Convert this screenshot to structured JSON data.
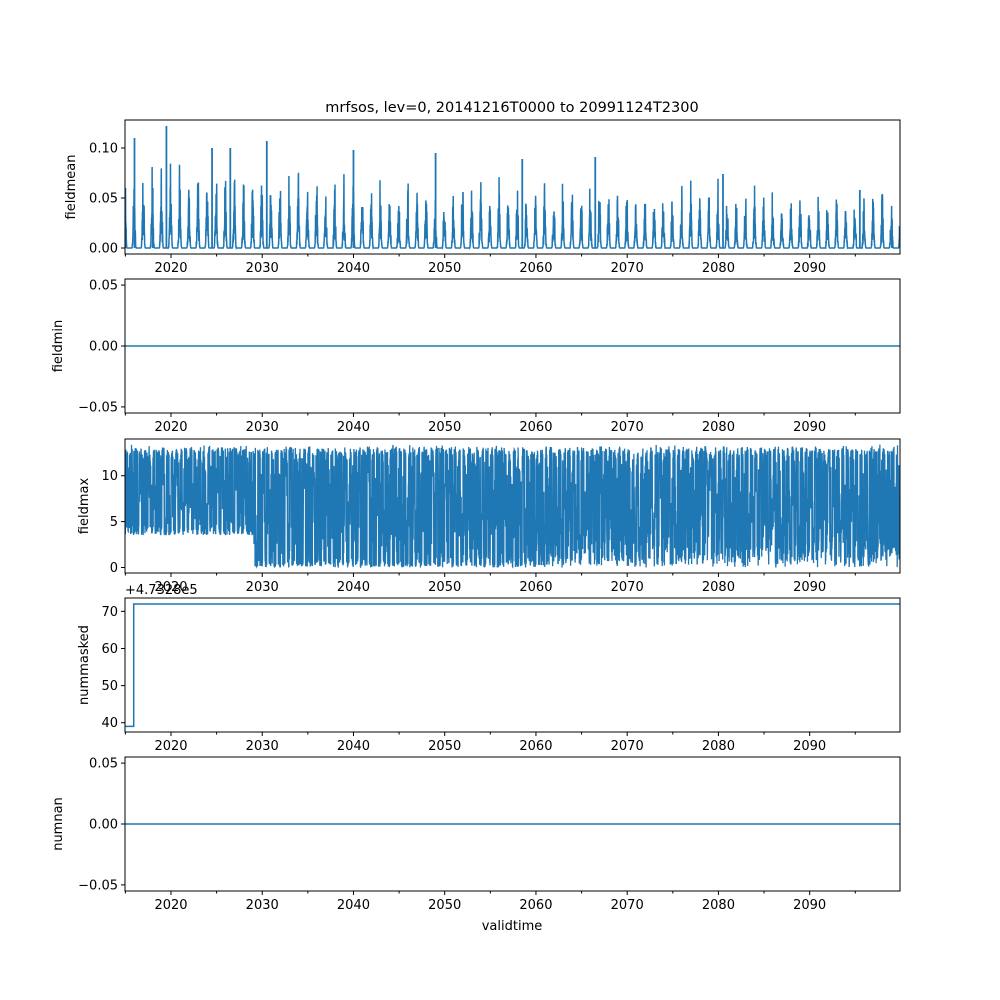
{
  "title": "mrfsos, lev=0, 20141216T0000 to 20991124T2300",
  "xlabel": "validtime",
  "line_color": "#1f77b4",
  "x_ticks": [
    "2020",
    "2030",
    "2040",
    "2050",
    "2060",
    "2070",
    "2080",
    "2090"
  ],
  "x_range": [
    "2014-12-16",
    "2099-11-24"
  ],
  "chart_data": [
    {
      "type": "line",
      "ylabel": "fieldmean",
      "y_ticks": [
        "0.00",
        "0.05",
        "0.10"
      ],
      "ylim": [
        -0.006,
        0.128
      ],
      "description_values": {
        "baseline": 0.0,
        "seasonal_peaks_approx": [
          {
            "x": 2015,
            "y": 0.06
          },
          {
            "x": 2016,
            "y": 0.11
          },
          {
            "x": 2018,
            "y": 0.06
          },
          {
            "x": 2019.5,
            "y": 0.122
          },
          {
            "x": 2024.5,
            "y": 0.1
          },
          {
            "x": 2026.5,
            "y": 0.1
          },
          {
            "x": 2030.5,
            "y": 0.107
          },
          {
            "x": 2040,
            "y": 0.098
          },
          {
            "x": 2049,
            "y": 0.095
          },
          {
            "x": 2058.5,
            "y": 0.089
          },
          {
            "x": 2066.5,
            "y": 0.091
          },
          {
            "x": 2080.5,
            "y": 0.074
          },
          {
            "x": 2095.5,
            "y": 0.058
          },
          {
            "x": 2099,
            "y": 0.027
          }
        ]
      }
    },
    {
      "type": "line",
      "ylabel": "fieldmin",
      "y_ticks": [
        "−0.05",
        "0.00",
        "0.05"
      ],
      "ylim": [
        -0.055,
        0.055
      ],
      "values": [
        {
          "x": "2014-12-16",
          "y": 0.0
        },
        {
          "x": "2099-11-24",
          "y": 0.0
        }
      ]
    },
    {
      "type": "line",
      "ylabel": "fieldmax",
      "y_ticks": [
        "0",
        "5",
        "10"
      ],
      "ylim": [
        -0.6,
        14.0
      ],
      "description_values": {
        "max_approx": 13.4,
        "min_before_2029": 3.5,
        "min_after_2029": 0.0
      }
    },
    {
      "type": "line",
      "ylabel": "nummasked",
      "offset_label": "+4.7328e5",
      "y_ticks": [
        "40",
        "50",
        "60",
        "70"
      ],
      "ylim": [
        37.5,
        73.6
      ],
      "values": [
        {
          "x": "2014-12-16",
          "y": 39
        },
        {
          "x": "2015-12-01",
          "y": 39
        },
        {
          "x": "2015-12-01",
          "y": 72
        },
        {
          "x": "2099-11-24",
          "y": 72
        }
      ]
    },
    {
      "type": "line",
      "ylabel": "numnan",
      "y_ticks": [
        "−0.05",
        "0.00",
        "0.05"
      ],
      "ylim": [
        -0.055,
        0.055
      ],
      "values": [
        {
          "x": "2014-12-16",
          "y": 0.0
        },
        {
          "x": "2099-11-24",
          "y": 0.0
        }
      ]
    }
  ]
}
